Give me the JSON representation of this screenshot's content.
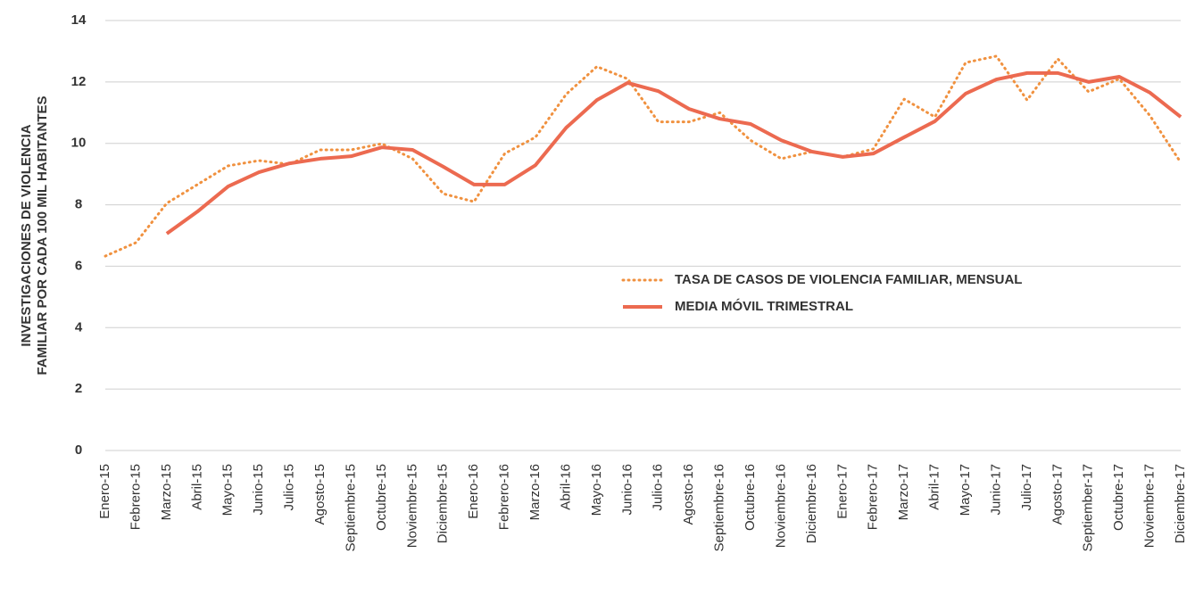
{
  "chart_data": {
    "type": "line",
    "ylabel": [
      "INVESTIGACIONES DE VIOLENCIA",
      "FAMILIAR POR CADA 100 MIL HABITANTES"
    ],
    "categories": [
      "Enero-15",
      "Febrero-15",
      "Marzo-15",
      "Abril-15",
      "Mayo-15",
      "Junio-15",
      "Julio-15",
      "Agosto-15",
      "Septiembre-15",
      "Octubre-15",
      "Noviembre-15",
      "Diciembre-15",
      "Enero-16",
      "Febrero-16",
      "Marzo-16",
      "Abril-16",
      "Mayo-16",
      "Junio-16",
      "Julio-16",
      "Agosto-16",
      "Septiembre-16",
      "Octubre-16",
      "Noviembre-16",
      "Diciembre-16",
      "Enero-17",
      "Febrero-17",
      "Marzo-17",
      "Abril-17",
      "Mayo-17",
      "Junio-17",
      "Julio-17",
      "Agosto-17",
      "Septiember-17",
      "Octubre-17",
      "Noviembre-17",
      "Diciembre-17"
    ],
    "series": [
      {
        "name": "TASA DE CASOS DE VIOLENCIA FAMILIAR, MENSUAL",
        "color": "#f0913f",
        "dash": true,
        "values": [
          6.33,
          6.77,
          8.05,
          8.66,
          9.27,
          9.44,
          9.32,
          9.79,
          9.79,
          9.99,
          9.5,
          8.36,
          8.1,
          9.67,
          10.2,
          11.6,
          12.5,
          12.1,
          10.7,
          10.7,
          11.0,
          10.1,
          9.5,
          9.73,
          9.56,
          9.82,
          11.44,
          10.86,
          12.63,
          12.84,
          11.41,
          12.75,
          11.68,
          12.1,
          10.9,
          9.38
        ]
      },
      {
        "name": "MEDIA MÓVIL TRIMESTRAL",
        "color": "#ec6a50",
        "dash": false,
        "values": [
          null,
          null,
          7.06,
          7.78,
          8.6,
          9.06,
          9.35,
          9.5,
          9.58,
          9.87,
          9.79,
          9.24,
          8.66,
          8.66,
          9.29,
          10.51,
          11.41,
          11.97,
          11.7,
          11.12,
          10.8,
          10.63,
          10.1,
          9.73,
          9.56,
          9.67,
          10.2,
          10.72,
          11.62,
          12.08,
          12.29,
          12.29,
          12.0,
          12.17,
          11.65,
          10.86
        ]
      }
    ],
    "ylim": [
      0,
      14
    ],
    "yticks": [
      0,
      2,
      4,
      6,
      8,
      10,
      12,
      14
    ],
    "grid": true
  }
}
